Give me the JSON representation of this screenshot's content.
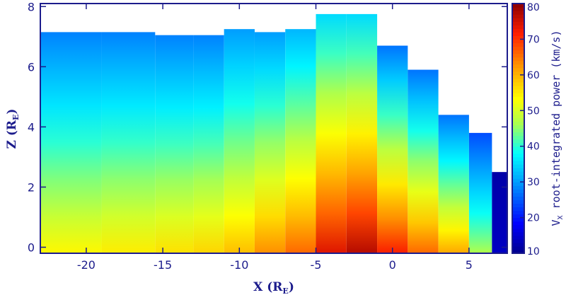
{
  "chart_data": {
    "type": "heatmap",
    "xlabel": "X (R",
    "xlabel_sub": "E",
    "xlabel_close": ")",
    "ylabel": "Z (R",
    "ylabel_sub": "E",
    "ylabel_close": ")",
    "colorbar_title_main": "V",
    "colorbar_title_sub": "X",
    "colorbar_title_rest": " root-integrated power (km/s)",
    "xlim": [
      -23,
      7.5
    ],
    "ylim": [
      -0.2,
      8.1
    ],
    "x_ticks": [
      -20,
      -15,
      -10,
      -5,
      0,
      5
    ],
    "y_ticks": [
      0,
      2,
      4,
      6,
      8
    ],
    "colorbar_range": [
      10,
      80
    ],
    "colorbar_ticks": [
      10,
      20,
      30,
      40,
      50,
      60,
      70,
      80
    ],
    "columns": [
      {
        "x0": -23.0,
        "x1": -19.0,
        "top": 7.15,
        "bottom_value": 54,
        "top_value": 28
      },
      {
        "x0": -19.0,
        "x1": -15.5,
        "top": 7.15,
        "bottom_value": 55,
        "top_value": 28
      },
      {
        "x0": -15.5,
        "x1": -13.0,
        "top": 7.05,
        "bottom_value": 56,
        "top_value": 28
      },
      {
        "x0": -13.0,
        "x1": -11.0,
        "top": 7.05,
        "bottom_value": 57,
        "top_value": 28
      },
      {
        "x0": -11.0,
        "x1": -9.0,
        "top": 7.25,
        "bottom_value": 59,
        "top_value": 30
      },
      {
        "x0": -9.0,
        "x1": -7.0,
        "top": 7.15,
        "bottom_value": 63,
        "top_value": 30
      },
      {
        "x0": -7.0,
        "x1": -5.0,
        "top": 7.25,
        "bottom_value": 66,
        "top_value": 32
      },
      {
        "x0": -5.0,
        "x1": -3.0,
        "top": 7.75,
        "bottom_value": 74,
        "top_value": 35
      },
      {
        "x0": -3.0,
        "x1": -1.0,
        "top": 7.75,
        "bottom_value": 77,
        "top_value": 35
      },
      {
        "x0": -1.0,
        "x1": 1.0,
        "top": 6.7,
        "bottom_value": 72,
        "top_value": 27
      },
      {
        "x0": 1.0,
        "x1": 3.0,
        "top": 5.9,
        "bottom_value": 66,
        "top_value": 27
      },
      {
        "x0": 3.0,
        "x1": 5.0,
        "top": 4.4,
        "bottom_value": 61,
        "top_value": 27
      },
      {
        "x0": 5.0,
        "x1": 6.5,
        "top": 3.8,
        "bottom_value": 47,
        "top_value": 24
      },
      {
        "x0": 6.5,
        "x1": 7.5,
        "top": 2.5,
        "bottom_value": 14,
        "top_value": 12
      }
    ]
  }
}
